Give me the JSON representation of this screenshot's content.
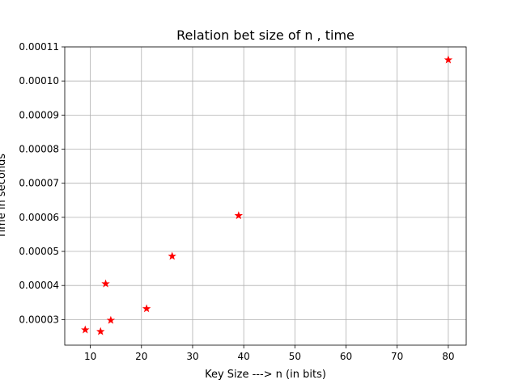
{
  "chart_data": {
    "type": "scatter",
    "title": "Relation bet size of n , time",
    "xlabel": "Key Size ---> n (in bits)",
    "ylabel": "Time in seconds",
    "xlim": [
      5,
      83.5
    ],
    "ylim": [
      2.25e-05,
      0.00011
    ],
    "x_ticks": [
      10,
      20,
      30,
      40,
      50,
      60,
      70,
      80
    ],
    "x_tick_labels": [
      "10",
      "20",
      "30",
      "40",
      "50",
      "60",
      "70",
      "80"
    ],
    "y_ticks": [
      3e-05,
      4e-05,
      5e-05,
      6e-05,
      7e-05,
      8e-05,
      9e-05,
      0.0001,
      0.00011
    ],
    "y_tick_labels": [
      "0.00003",
      "0.00004",
      "0.00005",
      "0.00006",
      "0.00007",
      "0.00008",
      "0.00009",
      "0.00010",
      "0.00011"
    ],
    "grid": true,
    "marker": "star",
    "marker_color": "#ff0000",
    "series": [
      {
        "x": [
          9,
          12,
          13,
          14,
          21,
          26,
          39,
          80
        ],
        "y": [
          2.7e-05,
          2.65e-05,
          4.05e-05,
          2.98e-05,
          3.32e-05,
          4.86e-05,
          6.05e-05,
          0.0001062
        ]
      }
    ]
  }
}
